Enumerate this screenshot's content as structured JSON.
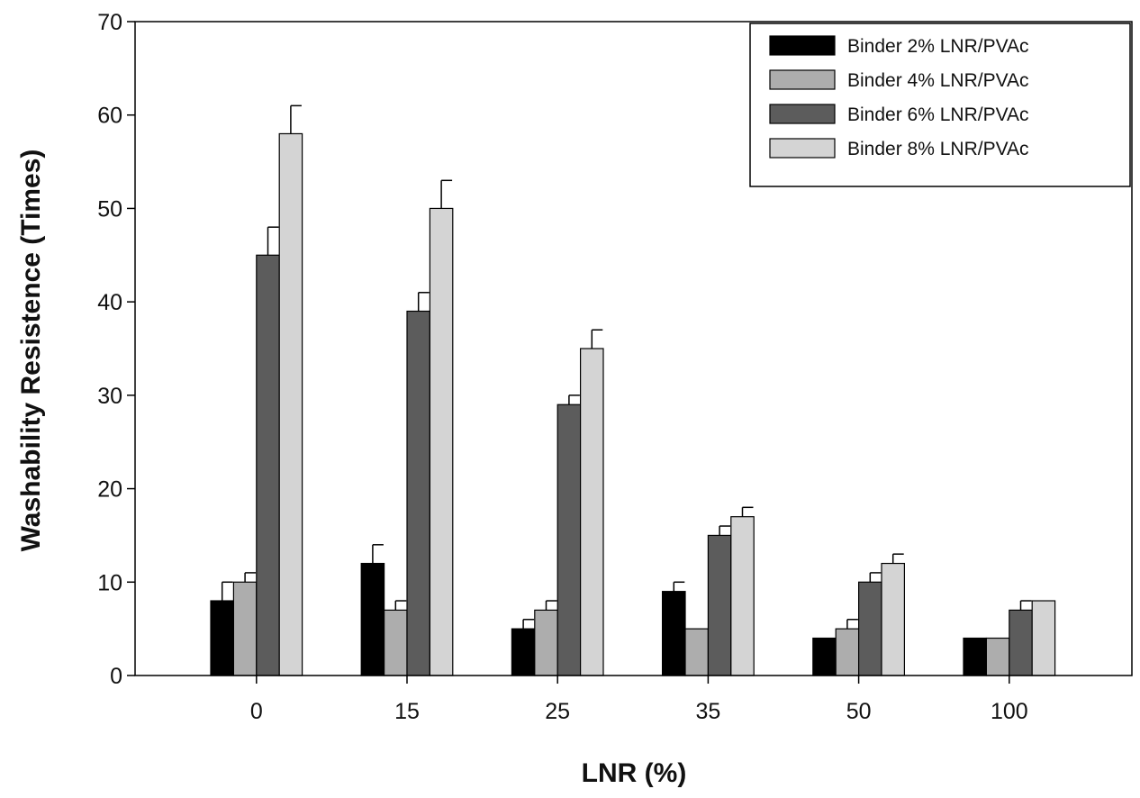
{
  "chart_data": {
    "type": "bar",
    "title": "",
    "xlabel": "LNR (%)",
    "ylabel": "Washability Resistence (Times)",
    "ylim": [
      0,
      70
    ],
    "yticks": [
      "0",
      "10",
      "20",
      "30",
      "40",
      "50",
      "60",
      "70"
    ],
    "grid": false,
    "legend_position": "top-right",
    "categories": [
      "0",
      "15",
      "25",
      "35",
      "50",
      "100"
    ],
    "series": [
      {
        "name": "Binder 2% LNR/PVAc",
        "color": "#000000",
        "values": [
          8,
          12,
          5,
          9,
          4,
          4
        ],
        "error_upper": [
          2,
          2,
          1,
          1,
          0,
          0
        ]
      },
      {
        "name": "Binder 4% LNR/PVAc",
        "color": "#adadad",
        "values": [
          10,
          7,
          7,
          5,
          5,
          4
        ],
        "error_upper": [
          1,
          1,
          1,
          0,
          1,
          0
        ]
      },
      {
        "name": "Binder 6% LNR/PVAc",
        "color": "#5c5c5c",
        "values": [
          45,
          39,
          29,
          15,
          10,
          7
        ],
        "error_upper": [
          3,
          2,
          1,
          1,
          1,
          1
        ]
      },
      {
        "name": "Binder 8% LNR/PVAc",
        "color": "#d4d4d4",
        "values": [
          58,
          50,
          35,
          17,
          12,
          8
        ],
        "error_upper": [
          3,
          3,
          2,
          1,
          1,
          0
        ]
      }
    ]
  }
}
